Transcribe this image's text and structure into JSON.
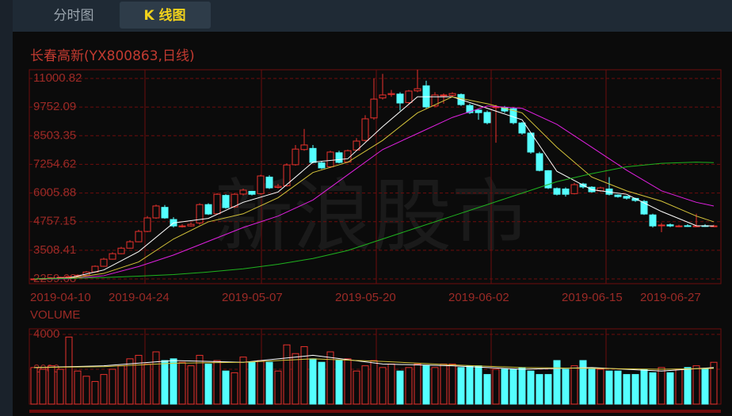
{
  "tabs": [
    "分时图",
    "K 线图"
  ],
  "chart_data": [
    {
      "type": "candlestick",
      "title": "长春高新(YX800863,日线)",
      "watermark": "新浪股市",
      "categories": [
        "2019-04-10",
        null,
        null,
        null,
        null,
        null,
        null,
        null,
        null,
        "2019-04-24",
        null,
        null,
        null,
        null,
        null,
        null,
        null,
        null,
        null,
        null,
        null,
        null,
        "2019-05-07",
        null,
        null,
        null,
        null,
        null,
        null,
        null,
        null,
        null,
        null,
        null,
        null,
        "2019-05-20",
        null,
        null,
        null,
        null,
        null,
        null,
        null,
        null,
        null,
        null,
        null,
        null,
        "2019-06-02",
        null,
        null,
        null,
        null,
        null,
        null,
        null,
        null,
        null,
        null,
        null,
        null,
        "2019-06-15",
        null,
        null,
        null,
        null,
        null,
        null,
        null,
        null,
        "2019-06-27",
        null,
        null,
        null,
        null,
        null,
        null,
        null,
        null
      ],
      "open": [
        2240,
        2260,
        2270,
        2300,
        2330,
        2360,
        2420,
        2560,
        2810,
        3120,
        3360,
        3600,
        3880,
        4330,
        4920,
        5380,
        4850,
        4560,
        4570,
        4700,
        5500,
        5100,
        5900,
        5400,
        5960,
        6080,
        5980,
        6700,
        6250,
        6320,
        7240,
        7900,
        7950,
        7320,
        7150,
        7760,
        7360,
        7880,
        8300,
        9280,
        10150,
        10300,
        10320,
        9950,
        10460,
        10680,
        9800,
        10250,
        10260,
        10300,
        9820,
        9620,
        9520,
        9740,
        9720,
        9680,
        9060,
        8620,
        7720,
        6980,
        6200,
        6180,
        5980,
        6400,
        6260,
        6100,
        6180,
        5920,
        5860,
        5770,
        5640,
        5050,
        4580,
        4620,
        4560,
        4580,
        4560,
        4580,
        4560
      ],
      "high": [
        2300,
        2310,
        2330,
        2360,
        2400,
        2460,
        2600,
        2850,
        3180,
        3420,
        3660,
        3950,
        4400,
        5000,
        5500,
        5480,
        4950,
        4650,
        4720,
        5560,
        5560,
        6000,
        5950,
        6000,
        6200,
        6100,
        6800,
        6780,
        6400,
        7300,
        8100,
        8800,
        8100,
        7400,
        7850,
        7850,
        7900,
        8400,
        9400,
        11000,
        11200,
        10500,
        10400,
        10500,
        11380,
        10900,
        10400,
        10350,
        10400,
        10350,
        9900,
        9650,
        9600,
        9850,
        9800,
        9750,
        9100,
        8650,
        7800,
        7000,
        6250,
        6250,
        6450,
        6450,
        6300,
        6280,
        6700,
        5950,
        5880,
        5800,
        5700,
        5100,
        4700,
        4680,
        4620,
        4650,
        5100,
        4650,
        4620
      ],
      "low": [
        2220,
        2240,
        2250,
        2280,
        2310,
        2340,
        2400,
        2540,
        2790,
        3100,
        3340,
        3580,
        3860,
        4300,
        4880,
        4880,
        4500,
        4500,
        4540,
        4620,
        5050,
        5060,
        5320,
        5350,
        5900,
        5900,
        5940,
        6180,
        6200,
        6280,
        7200,
        7850,
        7300,
        7050,
        7100,
        7300,
        7320,
        7840,
        8250,
        9200,
        10080,
        10200,
        9600,
        9900,
        10400,
        9700,
        9750,
        9900,
        10200,
        9800,
        9450,
        9200,
        9000,
        8200,
        9500,
        9000,
        8550,
        7720,
        6950,
        6180,
        5900,
        5850,
        5950,
        6200,
        6020,
        6050,
        5900,
        5800,
        5720,
        5620,
        5050,
        4500,
        4300,
        4520,
        4520,
        4530,
        4520,
        4530,
        4520
      ],
      "close": [
        2260,
        2270,
        2300,
        2330,
        2360,
        2420,
        2560,
        2810,
        3120,
        3360,
        3600,
        3880,
        4330,
        4920,
        5440,
        4920,
        4570,
        4570,
        4640,
        5500,
        5090,
        5950,
        5370,
        5950,
        6130,
        5950,
        6750,
        6230,
        6300,
        7230,
        7920,
        8100,
        7340,
        7100,
        7790,
        7340,
        7850,
        8270,
        9240,
        10100,
        10280,
        10340,
        9930,
        10450,
        10550,
        9760,
        10280,
        10280,
        10340,
        9860,
        9510,
        9510,
        9070,
        9760,
        9580,
        9070,
        8620,
        7790,
        6990,
        6230,
        5950,
        5950,
        6370,
        6270,
        6060,
        6230,
        5950,
        5850,
        5780,
        5680,
        5090,
        4570,
        4610,
        4570,
        4570,
        4570,
        4570,
        4570,
        4570
      ],
      "up_color": "#e8312c",
      "down_color": "#54ffff",
      "ylim": [
        2052.38,
        11380.87
      ],
      "yticks": [
        2259.68,
        3508.41,
        4757.15,
        6005.88,
        7254.62,
        8503.35,
        9752.09,
        11000.82
      ],
      "series": [
        {
          "color": "#ffffff",
          "x": [
            0,
            4,
            8,
            12,
            16,
            20,
            24,
            28,
            32,
            36,
            40,
            44,
            48,
            52,
            56,
            60,
            64,
            68,
            72,
            76,
            78
          ],
          "values": [
            2260,
            2300,
            2650,
            3450,
            4700,
            4900,
            5600,
            6050,
            7350,
            7500,
            8900,
            10200,
            10200,
            9700,
            9200,
            6950,
            6150,
            5950,
            5200,
            4580,
            4570
          ]
        },
        {
          "color": "#d4c33a",
          "x": [
            0,
            4,
            8,
            12,
            16,
            20,
            24,
            28,
            32,
            36,
            40,
            44,
            48,
            52,
            56,
            60,
            64,
            68,
            72,
            76,
            78
          ],
          "values": [
            2260,
            2280,
            2500,
            3000,
            4000,
            4750,
            5100,
            5800,
            6900,
            7350,
            8300,
            9500,
            10200,
            9900,
            9500,
            8000,
            6700,
            6100,
            5650,
            5000,
            4750
          ]
        },
        {
          "color": "#e020e0",
          "x": [
            0,
            4,
            8,
            12,
            16,
            20,
            24,
            28,
            32,
            36,
            40,
            44,
            48,
            52,
            56,
            60,
            64,
            68,
            72,
            76,
            78
          ],
          "values": [
            2260,
            2270,
            2400,
            2800,
            3300,
            3900,
            4500,
            5000,
            5700,
            6800,
            7900,
            8600,
            9300,
            9800,
            9700,
            9000,
            8000,
            7000,
            6100,
            5600,
            5440
          ]
        },
        {
          "color": "#1fb31f",
          "x": [
            0,
            4,
            8,
            12,
            16,
            20,
            24,
            28,
            32,
            36,
            40,
            44,
            48,
            52,
            56,
            60,
            64,
            68,
            72,
            76,
            78
          ],
          "values": [
            2260,
            2280,
            2320,
            2380,
            2450,
            2560,
            2700,
            2900,
            3150,
            3500,
            4000,
            4500,
            5000,
            5500,
            6000,
            6500,
            6850,
            7150,
            7300,
            7350,
            7330
          ]
        }
      ]
    },
    {
      "type": "bar",
      "label": "VOLUME",
      "values": [
        2100,
        2000,
        2200,
        2000,
        3850,
        1900,
        1600,
        1300,
        1700,
        2000,
        2200,
        2600,
        2800,
        2300,
        3000,
        2500,
        2600,
        2400,
        2200,
        2800,
        2300,
        2500,
        1900,
        1800,
        2700,
        2400,
        2500,
        2400,
        1900,
        3400,
        2900,
        3300,
        2600,
        2400,
        3000,
        2500,
        2600,
        1900,
        2200,
        2500,
        2100,
        2300,
        1900,
        2100,
        2300,
        2200,
        2100,
        2300,
        2300,
        2100,
        2200,
        2200,
        1700,
        2000,
        2000,
        2000,
        2100,
        1900,
        1700,
        1700,
        2500,
        2000,
        2200,
        2500,
        2000,
        2000,
        1900,
        1900,
        1700,
        1700,
        2000,
        1800,
        2100,
        1800,
        2000,
        2100,
        2200,
        2000,
        2400
      ],
      "ylim": [
        0,
        4320
      ],
      "yticks": [
        2000,
        4000
      ],
      "series": [
        {
          "color": "#ffffff",
          "x": [
            0,
            8,
            16,
            24,
            32,
            40,
            48,
            56,
            64,
            72,
            78
          ],
          "values": [
            2100,
            2200,
            2500,
            2400,
            2800,
            2300,
            2200,
            2000,
            2100,
            1900,
            2100
          ]
        },
        {
          "color": "#d4c33a",
          "x": [
            0,
            8,
            16,
            24,
            32,
            40,
            48,
            56,
            64,
            72,
            78
          ],
          "values": [
            2100,
            2150,
            2350,
            2400,
            2600,
            2450,
            2250,
            2100,
            2050,
            2000,
            2050
          ]
        }
      ]
    }
  ]
}
